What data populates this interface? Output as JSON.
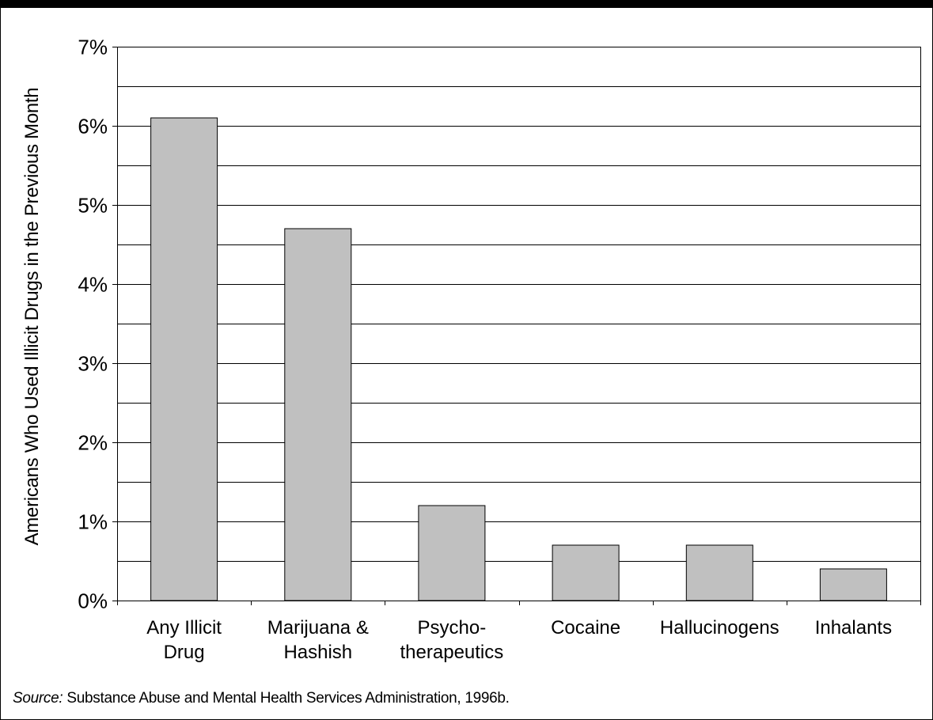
{
  "chart_data": {
    "type": "bar",
    "categories": [
      [
        "Any Illicit",
        "Drug"
      ],
      [
        "Marijuana &",
        "Hashish"
      ],
      [
        "Psycho-",
        "therapeutics"
      ],
      [
        "Cocaine"
      ],
      [
        "Hallucinogens"
      ],
      [
        "Inhalants"
      ]
    ],
    "values": [
      6.1,
      4.7,
      1.2,
      0.7,
      0.7,
      0.4
    ],
    "ylabel": "Americans Who Used Illicit Drugs in the Previous Month",
    "xlabel": "",
    "ylim": [
      0,
      7
    ],
    "yticks": [
      "0%",
      "1%",
      "2%",
      "3%",
      "4%",
      "5%",
      "6%",
      "7%"
    ],
    "grid": true,
    "bar_color": "#c0c0c0"
  },
  "source": {
    "prefix": "Source:",
    "text": " Substance Abuse and Mental Health Services Administration, 1996b."
  }
}
